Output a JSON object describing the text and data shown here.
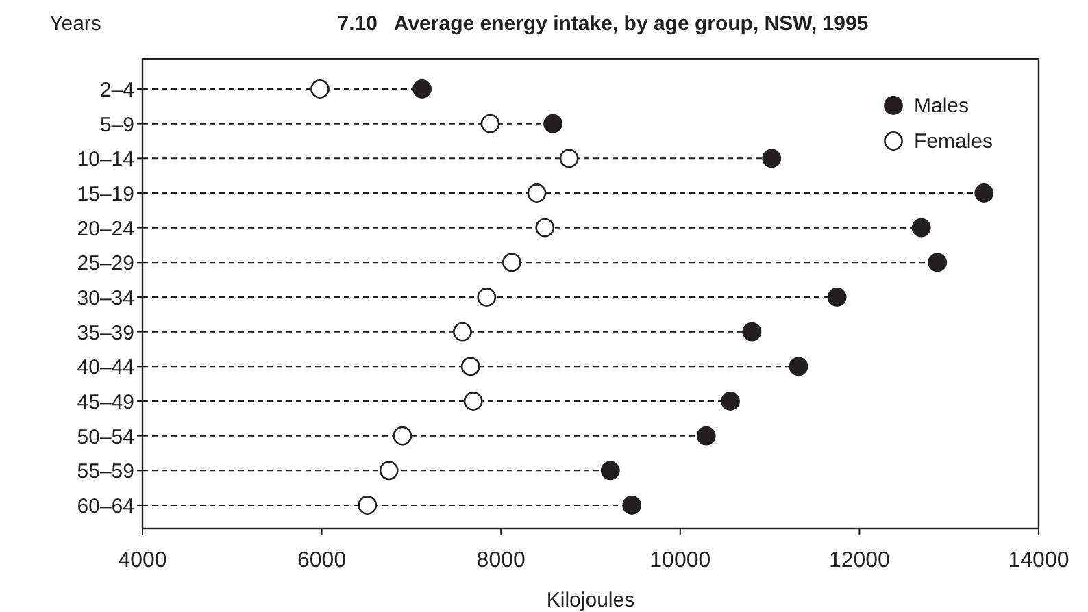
{
  "chart_data": {
    "type": "lollipop",
    "orientation": "horizontal",
    "title": "7.10   Average energy intake, by age group, NSW, 1995",
    "ylabel": "Years",
    "xlabel": "Kilojoules",
    "categories": [
      "2–4",
      "5–9",
      "10–14",
      "15–19",
      "20–24",
      "25–29",
      "30–34",
      "35–39",
      "40–44",
      "45–49",
      "50–54",
      "55–59",
      "60–64"
    ],
    "series": [
      {
        "name": "Males",
        "color": "#231f20",
        "values": [
          7120,
          8580,
          11020,
          13390,
          12690,
          12870,
          11750,
          10800,
          11320,
          10560,
          10290,
          9220,
          9460
        ]
      },
      {
        "name": "Females",
        "color": "#ffffff",
        "values": [
          5980,
          7880,
          8760,
          8400,
          8490,
          8120,
          7840,
          7570,
          7660,
          7690,
          6900,
          6750,
          6510
        ]
      }
    ],
    "xlim": [
      4000,
      14000
    ],
    "xticks": [
      4000,
      6000,
      8000,
      10000,
      12000,
      14000
    ],
    "grid": "y",
    "legend": "top right",
    "marker": "circle",
    "line_style": "dashed"
  }
}
